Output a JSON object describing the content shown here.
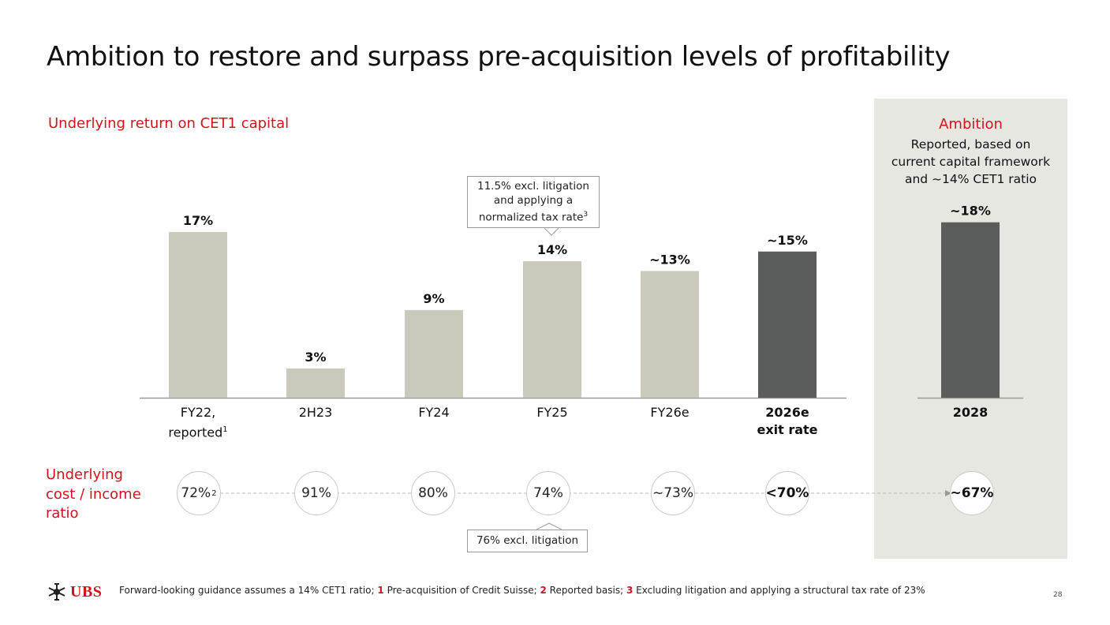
{
  "title": "Ambition to restore and surpass pre-acquisition levels of profitability",
  "subtitle": "Underlying return on CET1 capital",
  "ambition": {
    "title": "Ambition",
    "description_lines": [
      "Reported, based on",
      "current capital framework",
      "and ~14% CET1 ratio"
    ]
  },
  "callouts": {
    "top_lines": [
      "11.5% excl. litigation",
      "and applying a",
      "normalized tax rate"
    ],
    "top_sup": "3",
    "bottom": "76% excl. litigation"
  },
  "cost_income": {
    "label_lines": [
      "Underlying",
      "cost / income",
      "ratio"
    ],
    "values": [
      {
        "text": "72%",
        "sup": "2",
        "bold": false
      },
      {
        "text": "91%",
        "sup": "",
        "bold": false
      },
      {
        "text": "80%",
        "sup": "",
        "bold": false
      },
      {
        "text": "74%",
        "sup": "",
        "bold": false
      },
      {
        "text": "~73%",
        "sup": "",
        "bold": false
      },
      {
        "text": "<70%",
        "sup": "",
        "bold": true
      },
      {
        "text": "~67%",
        "sup": "",
        "bold": true
      }
    ]
  },
  "chart_data": {
    "type": "bar",
    "title": "Underlying return on CET1 capital",
    "xlabel": "",
    "ylabel": "",
    "ylim": [
      0,
      18
    ],
    "categories": [
      "FY22, reported",
      "2H23",
      "FY24",
      "FY25",
      "FY26e",
      "2026e exit rate",
      "2028"
    ],
    "category_lines": [
      [
        "FY22,",
        "reported"
      ],
      [
        "2H23"
      ],
      [
        "FY24"
      ],
      [
        "FY25"
      ],
      [
        "FY26e"
      ],
      [
        "2026e",
        "exit rate"
      ],
      [
        "2028"
      ]
    ],
    "category_sup": [
      "1",
      "",
      "",
      "",
      "",
      "",
      ""
    ],
    "category_bold": [
      false,
      false,
      false,
      false,
      false,
      true,
      true
    ],
    "values": [
      17,
      3,
      9,
      14,
      13,
      15,
      18
    ],
    "data_labels": [
      "17%",
      "3%",
      "9%",
      "14%",
      "~13%",
      "~15%",
      "~18%"
    ],
    "bar_colors": [
      "#cbc9bc",
      "#cbc9bc",
      "#cbc9bc",
      "#cbc9bc",
      "#cbc9bc",
      "#5b5c5c",
      "#5b5c5c"
    ],
    "group": [
      "history",
      "history",
      "history",
      "history",
      "history",
      "history",
      "ambition"
    ]
  },
  "footnote": {
    "intro": "Forward-looking guidance assumes a 14% CET1 ratio;",
    "items": [
      {
        "num": "1",
        "text": "Pre-acquisition of Credit Suisse;"
      },
      {
        "num": "2",
        "text": "Reported basis;"
      },
      {
        "num": "3",
        "text": "Excluding litigation and applying a structural tax rate of 23%"
      }
    ]
  },
  "logo_text": "UBS",
  "page_number": "28",
  "colors": {
    "accent": "#d0141e",
    "bar_light": "#cbc9bc",
    "bar_dark": "#5b5c5c",
    "panel": "#e7e7e1"
  }
}
